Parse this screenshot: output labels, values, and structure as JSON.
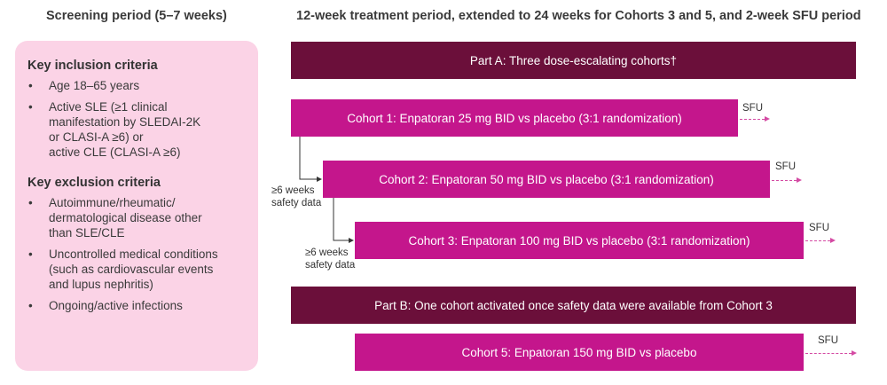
{
  "headers": {
    "screening": "Screening period (5–7 weeks)",
    "treatment": "12-week treatment period, extended to 24 weeks for Cohorts 3 and 5, and 2-week SFU period"
  },
  "inclusion": {
    "title": "Key inclusion criteria",
    "items": [
      "Age 18–65 years",
      "Active SLE (≥1 clinical\nmanifestation by SLEDAI-2K\nor CLASI-A ≥6) or\nactive CLE (CLASI-A ≥6)"
    ]
  },
  "exclusion": {
    "title": "Key exclusion criteria",
    "items": [
      "Autoimmune/rheumatic/\ndermatological disease other\nthan SLE/CLE",
      "Uncontrolled medical conditions\n(such as cardiovascular events\nand lupus nephritis)",
      "Ongoing/active infections"
    ]
  },
  "part_a": "Part A: Three dose-escalating cohorts†",
  "part_b": "Part B: One cohort activated once safety data were available from Cohort 3",
  "cohorts": [
    "Cohort 1: Enpatoran 25 mg BID vs placebo (3:1 randomization)",
    "Cohort 2: Enpatoran 50 mg BID vs placebo (3:1 randomization)",
    "Cohort 3: Enpatoran 100 mg BID vs placebo (3:1 randomization)",
    "Cohort 5: Enpatoran 150 mg BID vs placebo"
  ],
  "sfu_label": "SFU",
  "safety_label": "≥6 weeks\nsafety data",
  "colors": {
    "dark": "#6b0f3a",
    "magenta": "#c4168c",
    "panel": "#fbd3e6"
  }
}
